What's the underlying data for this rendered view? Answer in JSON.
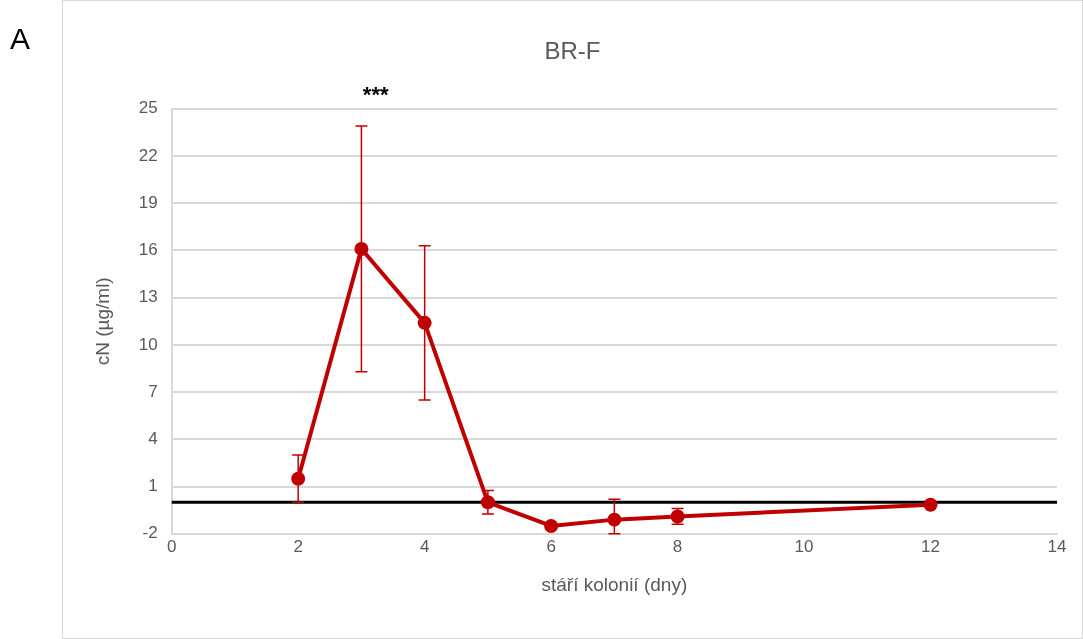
{
  "chart_data": {
    "type": "line",
    "title": "BR-F",
    "xlabel": "stáří kolonií (dny)",
    "ylabel": "cN (µg/ml)",
    "annotations": [
      "A",
      "***"
    ],
    "x": [
      2,
      3,
      4,
      5,
      6,
      7,
      8,
      12
    ],
    "series": [
      {
        "color": "#c00000",
        "values": [
          1.5,
          16.1,
          11.4,
          0,
          -1.5,
          -1.1,
          -0.9,
          -0.15
        ],
        "errors": [
          1.5,
          7.8,
          4.9,
          0.75,
          null,
          [
            -2,
            0.2
          ],
          0.5,
          null
        ]
      }
    ],
    "xlim": [
      0,
      14
    ],
    "xticks": [
      0,
      2,
      4,
      6,
      8,
      10,
      12,
      14
    ],
    "ylim": [
      -2,
      25
    ],
    "yticks": [
      -2,
      1,
      4,
      7,
      10,
      13,
      16,
      19,
      22,
      25
    ],
    "ref_lines": [
      {
        "axis": "y",
        "value": 0,
        "color": "#000000"
      }
    ],
    "grid": "y",
    "legend": false,
    "marker": "circle",
    "line_style": "solid"
  }
}
